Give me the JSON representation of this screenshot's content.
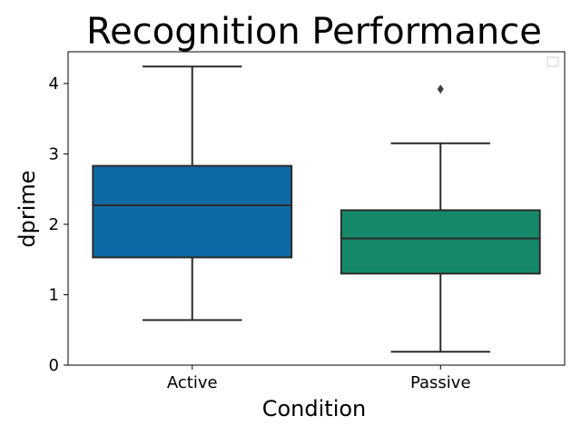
{
  "chart_data": {
    "type": "box",
    "title": "Recognition Performance",
    "xlabel": "Condition",
    "ylabel": "dprime",
    "ylim": [
      0,
      4.45
    ],
    "yticks": [
      0,
      1,
      2,
      3,
      4
    ],
    "grid": false,
    "legend": {
      "visible": true,
      "entries": [],
      "placement": "top-right"
    },
    "categories": [
      "Active",
      "Passive"
    ],
    "boxes": [
      {
        "category": "Active",
        "whisker_low": 0.64,
        "q1": 1.53,
        "median": 2.27,
        "q3": 2.83,
        "whisker_high": 4.24,
        "outliers": [],
        "color": "#0e6aa4"
      },
      {
        "category": "Passive",
        "whisker_low": 0.19,
        "q1": 1.3,
        "median": 1.8,
        "q3": 2.2,
        "whisker_high": 3.15,
        "outliers": [
          3.92
        ],
        "color": "#148a6b"
      }
    ]
  }
}
